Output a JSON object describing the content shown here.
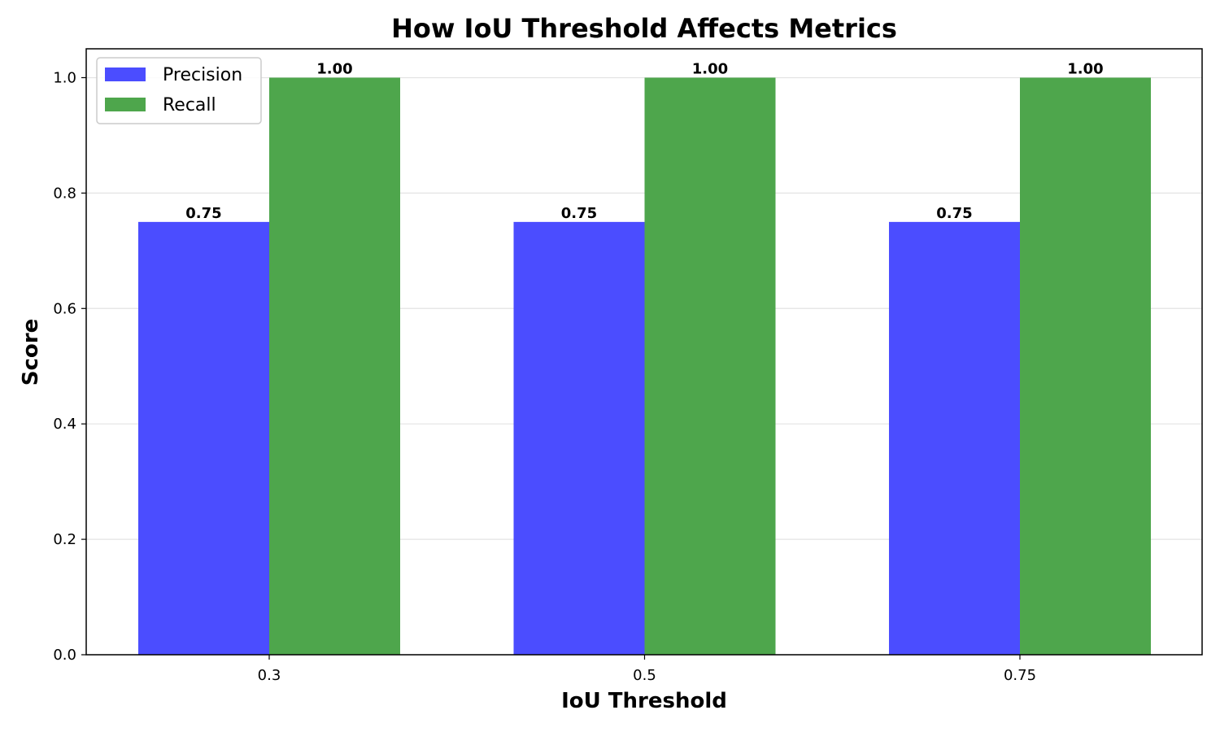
{
  "chart_data": {
    "type": "bar",
    "title": "How IoU Threshold Affects Metrics",
    "xlabel": "IoU Threshold",
    "ylabel": "Score",
    "categories": [
      "0.3",
      "0.5",
      "0.75"
    ],
    "series": [
      {
        "name": "Precision",
        "values": [
          0.75,
          0.75,
          0.75
        ],
        "color": "#4b4dff",
        "labels": [
          "0.75",
          "0.75",
          "0.75"
        ]
      },
      {
        "name": "Recall",
        "values": [
          1.0,
          1.0,
          1.0
        ],
        "color": "#4ea64c",
        "labels": [
          "1.00",
          "1.00",
          "1.00"
        ]
      }
    ],
    "ylim": [
      0,
      1.05
    ],
    "yticks": [
      "0.0",
      "0.2",
      "0.4",
      "0.6",
      "0.8",
      "1.0"
    ],
    "grid": "horizontal",
    "legend_position": "top-left"
  }
}
